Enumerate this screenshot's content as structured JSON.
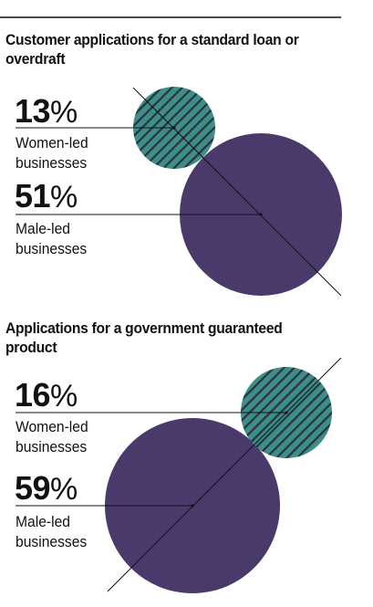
{
  "chart_data": [
    {
      "type": "bubble",
      "title": "Customer applications for a standard loan or overdraft",
      "series": [
        {
          "label": "Women-led businesses",
          "value": 13,
          "display": "13",
          "pattern": "striped"
        },
        {
          "label": "Male-led businesses",
          "value": 51,
          "display": "51",
          "pattern": "solid"
        }
      ],
      "unit": "%"
    },
    {
      "type": "bubble",
      "title": "Applications for a government guaranteed product",
      "series": [
        {
          "label": "Women-led businesses",
          "value": 16,
          "display": "16",
          "pattern": "striped"
        },
        {
          "label": "Male-led businesses",
          "value": 59,
          "display": "59",
          "pattern": "solid"
        }
      ],
      "unit": "%"
    }
  ],
  "colors": {
    "women": "#3d8f83",
    "women_stripe": "#2a2f4a",
    "men": "#4a3a6b",
    "rule": "#111111"
  }
}
